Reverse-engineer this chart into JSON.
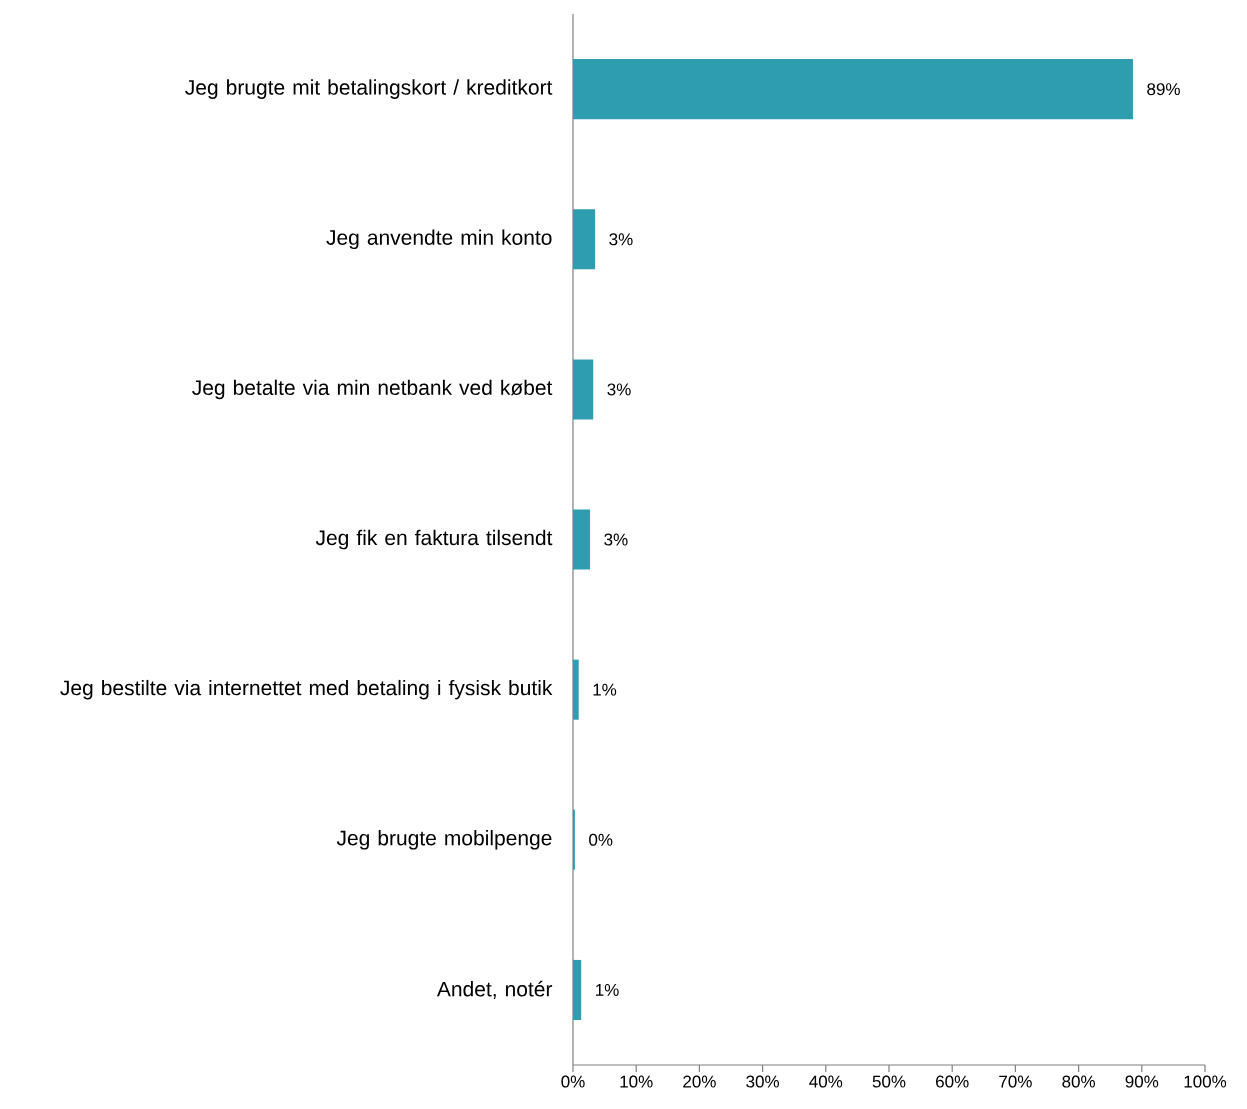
{
  "chart_data": {
    "type": "bar",
    "orientation": "horizontal",
    "categories": [
      "Jeg brugte mit betalingskort / kreditkort",
      "Jeg anvendte min konto",
      "Jeg betalte via min netbank ved købet",
      "Jeg fik en faktura tilsendt",
      "Jeg bestilte via internettet med betaling i fysisk butik",
      "Jeg brugte mobilpenge",
      "Andet, notér"
    ],
    "values": [
      88.6,
      3.5,
      3.2,
      2.7,
      0.9,
      0.3,
      1.3
    ],
    "value_labels": [
      "89%",
      "3%",
      "3%",
      "3%",
      "1%",
      "0%",
      "1%"
    ],
    "color": "#2e9db0",
    "xlim": [
      0,
      100
    ],
    "xticks": [
      {
        "value": 0,
        "label": "0%"
      },
      {
        "value": 10,
        "label": "10%"
      },
      {
        "value": 20,
        "label": "20%"
      },
      {
        "value": 30,
        "label": "30%"
      },
      {
        "value": 40,
        "label": "40%"
      },
      {
        "value": 50,
        "label": "50%"
      },
      {
        "value": 60,
        "label": "60%"
      },
      {
        "value": 70,
        "label": "70%"
      },
      {
        "value": 80,
        "label": "80%"
      },
      {
        "value": 90,
        "label": "90%"
      },
      {
        "value": 100,
        "label": "100%"
      }
    ]
  }
}
